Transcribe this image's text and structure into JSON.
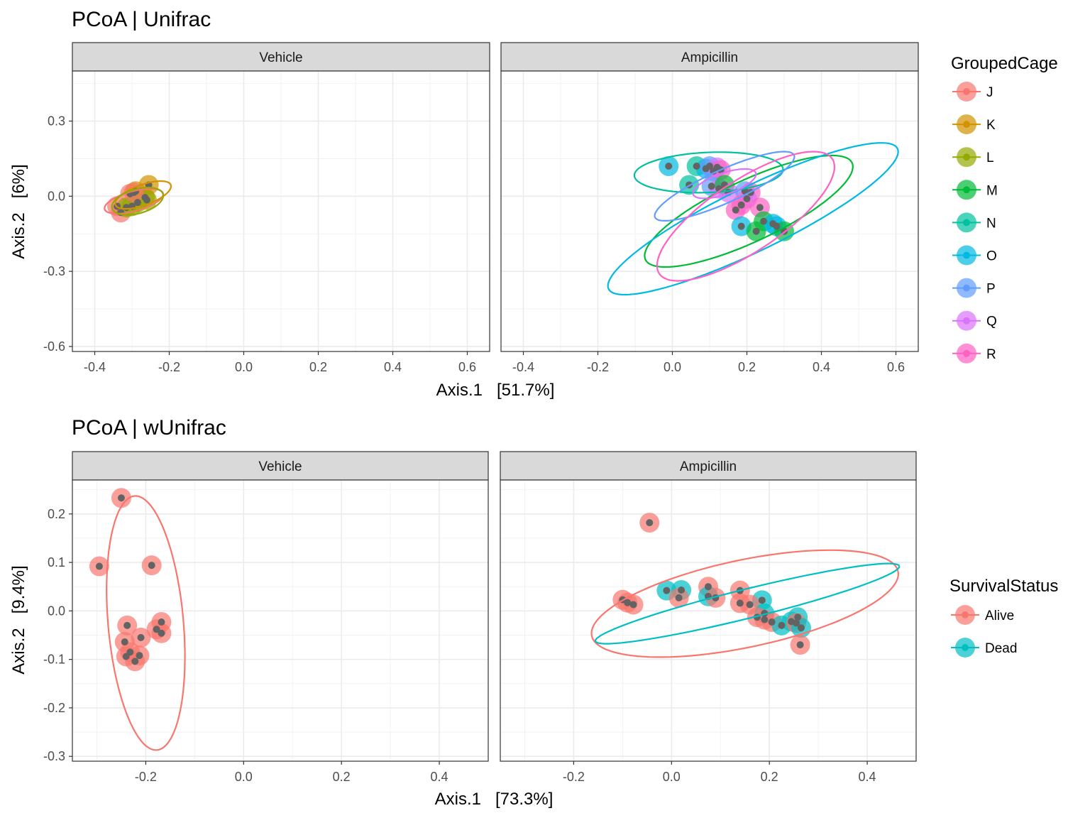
{
  "chart_data": [
    {
      "type": "scatter",
      "title": "PCoA | Unifrac",
      "xlabel": "Axis.1   [51.7%]",
      "ylabel": "Axis.2   [6%]",
      "xlim": [
        -0.46,
        0.66
      ],
      "ylim": [
        -0.62,
        0.5
      ],
      "xticks": [
        -0.4,
        -0.2,
        0.0,
        0.2,
        0.4,
        0.6
      ],
      "xtick_labels": [
        "-0.4",
        "-0.2",
        "0.0",
        "0.2",
        "0.4",
        "0.6"
      ],
      "yticks": [
        0.3,
        0.0,
        -0.3,
        -0.6
      ],
      "ytick_labels": [
        "0.3",
        "0.0",
        "-0.3",
        "-0.6"
      ],
      "grid": true,
      "legend_title": "GroupedCage",
      "legend_position": "right",
      "legend": [
        "J",
        "K",
        "L",
        "M",
        "N",
        "O",
        "P",
        "Q",
        "R"
      ],
      "colors": {
        "J": "#F8766D",
        "K": "#D39200",
        "L": "#93AA00",
        "M": "#00BA38",
        "N": "#00C19F",
        "O": "#00B9E3",
        "P": "#619CFF",
        "Q": "#DB72FB",
        "R": "#FF61C3"
      },
      "panels": [
        {
          "label": "Vehicle",
          "points": [
            {
              "x": -0.34,
              "y": -0.04,
              "g": "J"
            },
            {
              "x": -0.33,
              "y": -0.065,
              "g": "J"
            },
            {
              "x": -0.305,
              "y": 0.01,
              "g": "J"
            },
            {
              "x": -0.255,
              "y": 0.045,
              "g": "K"
            },
            {
              "x": -0.29,
              "y": 0.02,
              "g": "K"
            },
            {
              "x": -0.265,
              "y": -0.005,
              "g": "K"
            },
            {
              "x": -0.3,
              "y": -0.04,
              "g": "L"
            },
            {
              "x": -0.285,
              "y": -0.025,
              "g": "L"
            },
            {
              "x": -0.26,
              "y": -0.015,
              "g": "L"
            },
            {
              "x": -0.315,
              "y": -0.045,
              "g": "L"
            },
            {
              "x": -0.295,
              "y": 0.015,
              "g": "J"
            }
          ],
          "ellipses": [
            {
              "g": "J",
              "cx": -0.295,
              "cy": -0.02,
              "rx": 0.085,
              "ry": 0.038,
              "angle": 25
            },
            {
              "g": "K",
              "cx": -0.27,
              "cy": 0.005,
              "rx": 0.085,
              "ry": 0.038,
              "angle": 32
            },
            {
              "g": "L",
              "cx": -0.285,
              "cy": -0.02,
              "rx": 0.075,
              "ry": 0.046,
              "angle": 30
            }
          ]
        },
        {
          "label": "Ampicillin",
          "points": [
            {
              "x": -0.01,
              "y": 0.12,
              "g": "O"
            },
            {
              "x": 0.045,
              "y": 0.045,
              "g": "N"
            },
            {
              "x": 0.065,
              "y": 0.12,
              "g": "N"
            },
            {
              "x": 0.09,
              "y": 0.11,
              "g": "O"
            },
            {
              "x": 0.1,
              "y": 0.12,
              "g": "P"
            },
            {
              "x": 0.11,
              "y": 0.1,
              "g": "P"
            },
            {
              "x": 0.12,
              "y": 0.115,
              "g": "Q"
            },
            {
              "x": 0.13,
              "y": 0.105,
              "g": "R"
            },
            {
              "x": 0.105,
              "y": 0.04,
              "g": "P"
            },
            {
              "x": 0.125,
              "y": 0.03,
              "g": "Q"
            },
            {
              "x": 0.14,
              "y": 0.045,
              "g": "M"
            },
            {
              "x": 0.15,
              "y": 0.015,
              "g": "Q"
            },
            {
              "x": 0.195,
              "y": 0.02,
              "g": "P"
            },
            {
              "x": 0.21,
              "y": 0.015,
              "g": "R"
            },
            {
              "x": 0.2,
              "y": -0.01,
              "g": "Q"
            },
            {
              "x": 0.17,
              "y": -0.055,
              "g": "R"
            },
            {
              "x": 0.185,
              "y": -0.035,
              "g": "R"
            },
            {
              "x": 0.235,
              "y": -0.045,
              "g": "R"
            },
            {
              "x": 0.185,
              "y": -0.12,
              "g": "O"
            },
            {
              "x": 0.225,
              "y": -0.14,
              "g": "M"
            },
            {
              "x": 0.245,
              "y": -0.1,
              "g": "M"
            },
            {
              "x": 0.27,
              "y": -0.11,
              "g": "O"
            },
            {
              "x": 0.28,
              "y": -0.12,
              "g": "O"
            },
            {
              "x": 0.3,
              "y": -0.14,
              "g": "M"
            }
          ],
          "ellipses": [
            {
              "g": "N",
              "cx": 0.0975,
              "cy": 0.095,
              "rx": 0.2,
              "ry": 0.08,
              "angle": 4
            },
            {
              "g": "M",
              "cx": 0.205,
              "cy": -0.06,
              "rx": 0.34,
              "ry": 0.11,
              "angle": 37
            },
            {
              "g": "O",
              "cx": 0.2165,
              "cy": -0.09,
              "rx": 0.48,
              "ry": 0.115,
              "angle": 37
            },
            {
              "g": "P",
              "cx": 0.14,
              "cy": 0.04,
              "rx": 0.225,
              "ry": 0.06,
              "angle": 35
            },
            {
              "g": "Q",
              "cx": 0.14,
              "cy": 0.05,
              "rx": 0.095,
              "ry": 0.04,
              "angle": 30
            },
            {
              "g": "R",
              "cx": 0.197,
              "cy": -0.08,
              "rx": 0.33,
              "ry": 0.12,
              "angle": 48
            }
          ]
        }
      ]
    },
    {
      "type": "scatter",
      "title": "PCoA | wUnifrac",
      "xlabel": "Axis.1   [73.3%]",
      "ylabel": "Axis.2   [9.4%]",
      "xlim": [
        -0.35,
        0.5
      ],
      "ylim": [
        -0.31,
        0.27
      ],
      "xticks": [
        -0.2,
        0.0,
        0.2,
        0.4
      ],
      "xtick_labels": [
        "-0.2",
        "0.0",
        "0.2",
        "0.4"
      ],
      "yticks": [
        0.2,
        0.1,
        0.0,
        -0.1,
        -0.2,
        -0.3
      ],
      "ytick_labels": [
        "0.2",
        "0.1",
        "0.0",
        "-0.1",
        "-0.2",
        "-0.3"
      ],
      "grid": true,
      "legend_title": "SurvivalStatus",
      "legend_position": "right",
      "legend": [
        "Alive",
        "Dead"
      ],
      "colors": {
        "Alive": "#F8766D",
        "Dead": "#00BFC4"
      },
      "panels": [
        {
          "label": "Vehicle",
          "points": [
            {
              "x": -0.25,
              "y": 0.233,
              "g": "Alive"
            },
            {
              "x": -0.295,
              "y": 0.092,
              "g": "Alive"
            },
            {
              "x": -0.188,
              "y": 0.094,
              "g": "Alive"
            },
            {
              "x": -0.238,
              "y": -0.03,
              "g": "Alive"
            },
            {
              "x": -0.168,
              "y": -0.023,
              "g": "Alive"
            },
            {
              "x": -0.178,
              "y": -0.038,
              "g": "Alive"
            },
            {
              "x": -0.168,
              "y": -0.046,
              "g": "Alive"
            },
            {
              "x": -0.21,
              "y": -0.055,
              "g": "Alive"
            },
            {
              "x": -0.243,
              "y": -0.064,
              "g": "Alive"
            },
            {
              "x": -0.232,
              "y": -0.085,
              "g": "Alive"
            },
            {
              "x": -0.24,
              "y": -0.094,
              "g": "Alive"
            },
            {
              "x": -0.213,
              "y": -0.092,
              "g": "Alive"
            },
            {
              "x": -0.222,
              "y": -0.104,
              "g": "Alive"
            }
          ],
          "ellipses": [
            {
              "g": "Alive",
              "cx": -0.2,
              "cy": -0.025,
              "rx": 0.263,
              "ry": 0.077,
              "angle": -85
            }
          ]
        },
        {
          "label": "Ampicillin",
          "points": [
            {
              "x": -0.045,
              "y": 0.182,
              "g": "Alive"
            },
            {
              "x": -0.1,
              "y": 0.023,
              "g": "Alive"
            },
            {
              "x": -0.09,
              "y": 0.017,
              "g": "Alive"
            },
            {
              "x": -0.078,
              "y": 0.013,
              "g": "Alive"
            },
            {
              "x": -0.01,
              "y": 0.042,
              "g": "Dead"
            },
            {
              "x": 0.02,
              "y": 0.043,
              "g": "Dead"
            },
            {
              "x": 0.015,
              "y": 0.027,
              "g": "Alive"
            },
            {
              "x": 0.075,
              "y": 0.05,
              "g": "Alive"
            },
            {
              "x": 0.075,
              "y": 0.03,
              "g": "Dead"
            },
            {
              "x": 0.09,
              "y": 0.027,
              "g": "Alive"
            },
            {
              "x": 0.14,
              "y": 0.042,
              "g": "Alive"
            },
            {
              "x": 0.14,
              "y": 0.016,
              "g": "Alive"
            },
            {
              "x": 0.185,
              "y": 0.022,
              "g": "Dead"
            },
            {
              "x": 0.16,
              "y": 0.013,
              "g": "Alive"
            },
            {
              "x": 0.19,
              "y": -0.005,
              "g": "Dead"
            },
            {
              "x": 0.175,
              "y": -0.013,
              "g": "Alive"
            },
            {
              "x": 0.19,
              "y": -0.018,
              "g": "Alive"
            },
            {
              "x": 0.205,
              "y": -0.023,
              "g": "Alive"
            },
            {
              "x": 0.225,
              "y": -0.03,
              "g": "Dead"
            },
            {
              "x": 0.245,
              "y": -0.022,
              "g": "Dead"
            },
            {
              "x": 0.258,
              "y": -0.013,
              "g": "Dead"
            },
            {
              "x": 0.255,
              "y": -0.025,
              "g": "Alive"
            },
            {
              "x": 0.265,
              "y": -0.035,
              "g": "Dead"
            },
            {
              "x": 0.263,
              "y": -0.07,
              "g": "Alive"
            }
          ],
          "ellipses": [
            {
              "g": "Alive",
              "cx": 0.15,
              "cy": 0.015,
              "rx": 0.32,
              "ry": 0.09,
              "angle": 12
            },
            {
              "g": "Dead",
              "cx": 0.155,
              "cy": 0.015,
              "rx": 0.32,
              "ry": 0.03,
              "angle": 14
            }
          ]
        }
      ]
    }
  ]
}
